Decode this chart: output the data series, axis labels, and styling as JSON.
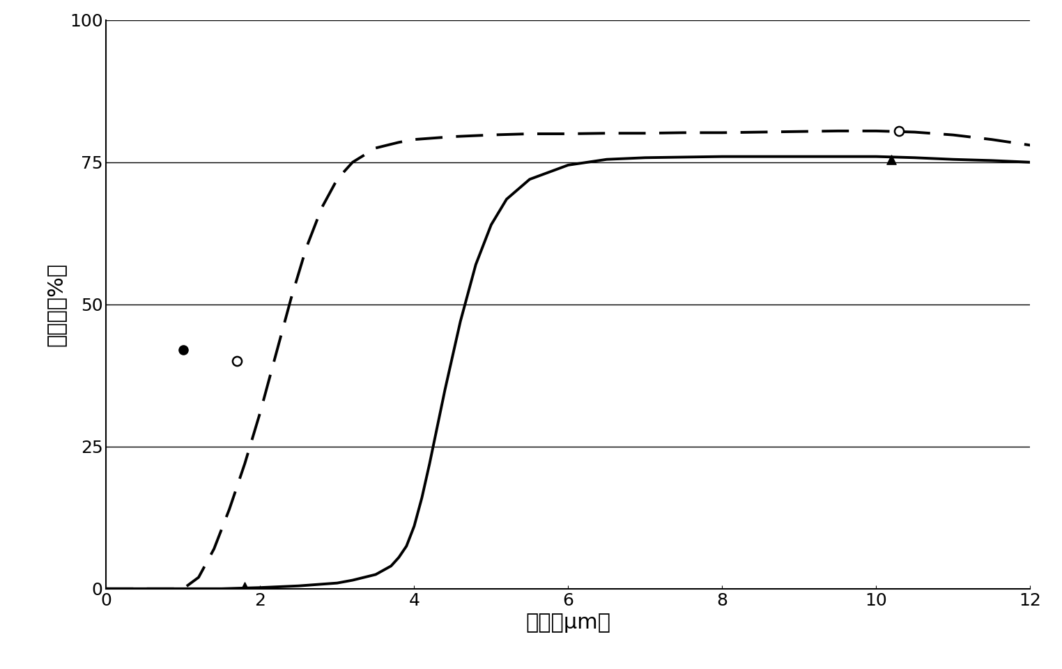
{
  "title": "",
  "xlabel": "波长［μm］",
  "ylabel": "透光率［%］",
  "xlim": [
    0,
    12
  ],
  "ylim": [
    0,
    100
  ],
  "xticks": [
    0,
    2,
    4,
    6,
    8,
    10,
    12
  ],
  "yticks": [
    0,
    25,
    50,
    75,
    100
  ],
  "hlines": [
    25,
    50,
    75,
    100
  ],
  "background_color": "#ffffff",
  "line_color": "#000000",
  "dashed_line_color": "#000000",
  "solid_line": {
    "x": [
      0.0,
      0.5,
      1.0,
      1.5,
      2.0,
      2.5,
      2.8,
      3.0,
      3.2,
      3.5,
      3.7,
      3.8,
      3.9,
      4.0,
      4.1,
      4.2,
      4.4,
      4.6,
      4.8,
      5.0,
      5.2,
      5.5,
      6.0,
      6.5,
      7.0,
      7.5,
      8.0,
      8.5,
      9.0,
      9.5,
      10.0,
      10.5,
      11.0,
      11.5,
      12.0
    ],
    "y": [
      0.0,
      0.0,
      0.0,
      0.0,
      0.2,
      0.5,
      0.8,
      1.0,
      1.5,
      2.5,
      4.0,
      5.5,
      7.5,
      11.0,
      16.0,
      22.0,
      35.0,
      47.0,
      57.0,
      64.0,
      68.5,
      72.0,
      74.5,
      75.5,
      75.8,
      75.9,
      76.0,
      76.0,
      76.0,
      76.0,
      76.0,
      75.8,
      75.5,
      75.3,
      75.0
    ]
  },
  "dashed_line": {
    "x": [
      0.0,
      0.5,
      1.0,
      1.2,
      1.4,
      1.6,
      1.8,
      2.0,
      2.2,
      2.4,
      2.6,
      2.8,
      3.0,
      3.2,
      3.5,
      3.8,
      4.0,
      4.5,
      5.0,
      5.5,
      6.0,
      6.5,
      7.0,
      7.5,
      8.0,
      8.5,
      9.0,
      9.5,
      10.0,
      10.5,
      11.0,
      11.5,
      12.0
    ],
    "y": [
      0.0,
      0.0,
      0.0,
      2.0,
      7.0,
      14.0,
      22.0,
      31.0,
      41.0,
      51.0,
      60.0,
      67.0,
      72.0,
      75.0,
      77.5,
      78.5,
      79.0,
      79.5,
      79.8,
      80.0,
      80.0,
      80.1,
      80.1,
      80.2,
      80.2,
      80.3,
      80.4,
      80.5,
      80.5,
      80.3,
      79.8,
      79.0,
      78.0
    ]
  },
  "solid_markers": {
    "x": [
      1.8,
      10.2
    ],
    "y": [
      0.3,
      75.5
    ],
    "marker": "^",
    "size": 90
  },
  "dashed_marker_filled": {
    "x": [
      1.0
    ],
    "y": [
      42.0
    ],
    "marker": "o",
    "size": 90
  },
  "dashed_marker_open": {
    "x": [
      1.7
    ],
    "y": [
      40.0
    ],
    "marker": "o",
    "size": 90
  },
  "dashed_marker_end": {
    "x": [
      10.3
    ],
    "y": [
      80.5
    ],
    "marker": "o",
    "size": 90
  },
  "font_size_axis_label": 22,
  "font_size_tick": 18
}
